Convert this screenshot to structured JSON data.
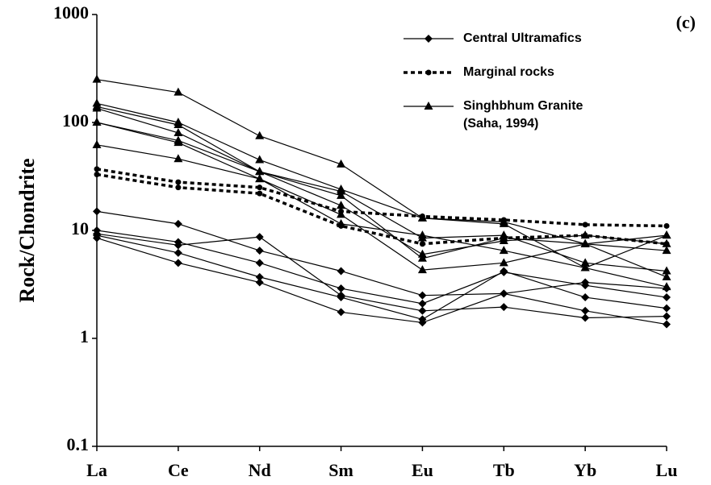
{
  "chart_data": {
    "type": "line",
    "ylabel": "Rock/Chondrite",
    "annotation": "(c)",
    "categories": [
      "La",
      "Ce",
      "Nd",
      "Sm",
      "Eu",
      "Tb",
      "Yb",
      "Lu"
    ],
    "log_scale": true,
    "ylim": [
      0.1,
      1000
    ],
    "yticks": [
      0.1,
      1,
      10,
      100,
      1000
    ],
    "legend": "upper right",
    "series": [
      {
        "name": [
          "Central Ultramafics"
        ],
        "color": "#000000",
        "marker": "diamond",
        "dash": "solid",
        "lines": [
          [
            15,
            11.5,
            6.5,
            4.2,
            2.5,
            2.6,
            3.3,
            2.9
          ],
          [
            10,
            7.8,
            5.0,
            2.9,
            2.1,
            4.1,
            3.1,
            2.4
          ],
          [
            9.3,
            7.3,
            8.7,
            2.5,
            1.8,
            1.95,
            1.55,
            1.6
          ],
          [
            9,
            6.2,
            3.7,
            2.4,
            1.5,
            4.2,
            2.4,
            1.9
          ],
          [
            8.5,
            5.0,
            3.3,
            1.75,
            1.4,
            2.6,
            1.8,
            1.35
          ]
        ]
      },
      {
        "name": [
          "Marginal rocks"
        ],
        "color": "#000000",
        "marker": "circle",
        "dash": "dotted",
        "lines": [
          [
            37,
            28,
            25,
            15,
            13.5,
            12.5,
            11.3,
            11
          ],
          [
            33,
            25,
            22,
            11,
            7.5,
            8.5,
            9,
            7.5
          ]
        ]
      },
      {
        "name": [
          "Singhbhum Granite",
          "(Saha, 1994)"
        ],
        "color": "#000000",
        "marker": "triangle",
        "dash": "solid",
        "lines": [
          [
            250,
            190,
            75,
            41,
            13,
            12,
            7.5,
            9
          ],
          [
            150,
            100,
            45,
            24,
            13,
            11.5,
            4.5,
            9
          ],
          [
            140,
            95,
            35,
            23,
            8.5,
            9,
            5,
            4.2
          ],
          [
            135,
            80,
            35,
            21,
            5.5,
            8.5,
            7.5,
            6.5
          ],
          [
            100,
            68,
            35,
            17,
            6,
            8,
            9,
            7.5
          ],
          [
            100,
            65,
            30,
            14,
            4.3,
            5,
            7.5,
            3.7
          ],
          [
            62,
            46,
            30,
            11.5,
            9,
            6.5,
            4.5,
            3
          ]
        ]
      }
    ]
  }
}
